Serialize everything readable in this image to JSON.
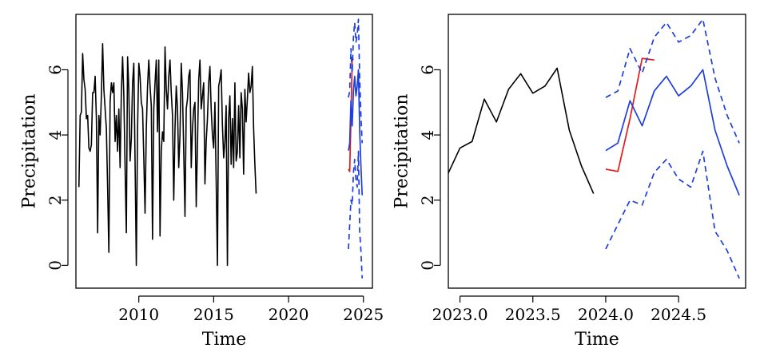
{
  "chart_data": [
    {
      "type": "line",
      "xlabel": "Time",
      "ylabel": "Precipitation",
      "xlim": [
        2005.8,
        2025.6
      ],
      "ylim": [
        -0.7,
        7.7
      ],
      "xticks": [
        2010,
        2015,
        2020,
        2025
      ],
      "xtick_labels": [
        "2010",
        "2015",
        "2020",
        "2025"
      ],
      "yticks": [
        0,
        2,
        4,
        6
      ],
      "ytick_labels": [
        "0",
        "2",
        "4",
        "6"
      ],
      "grid": false,
      "series": [
        {
          "role": "observed",
          "color": "#000000",
          "style": "solid",
          "x_start": 2006.0,
          "x_step": 0.0833333,
          "values": [
            2.4,
            4.6,
            4.7,
            6.5,
            5.7,
            5.4,
            4.5,
            4.6,
            3.6,
            3.5,
            3.7,
            5.3,
            5.3,
            5.8,
            4.5,
            1.0,
            4.6,
            4.0,
            5.2,
            6.8,
            5.4,
            4.8,
            4.2,
            2.4,
            0.4,
            5.0,
            5.6,
            5.3,
            5.6,
            3.8,
            4.6,
            3.5,
            4.8,
            3.0,
            5.3,
            6.4,
            5.2,
            3.0,
            1.0,
            6.4,
            5.4,
            3.2,
            3.9,
            5.6,
            6.2,
            3.2,
            0.0,
            4.2,
            6.2,
            5.8,
            5.0,
            4.8,
            3.3,
            1.6,
            4.2,
            5.5,
            6.3,
            5.5,
            4.9,
            0.8,
            4.8,
            5.6,
            6.3,
            4.1,
            6.3,
            0.9,
            3.5,
            4.1,
            3.8,
            6.7,
            5.4,
            4.8,
            5.8,
            6.3,
            5.3,
            4.6,
            2.0,
            4.2,
            5.5,
            4.8,
            3.0,
            4.0,
            6.2,
            5.3,
            3.5,
            1.5,
            4.8,
            5.1,
            5.8,
            6.0,
            3.0,
            4.2,
            4.8,
            5.0,
            1.8,
            3.7,
            5.7,
            6.3,
            4.8,
            5.2,
            5.6,
            2.5,
            3.8,
            4.5,
            5.6,
            6.1,
            4.8,
            4.0,
            3.6,
            5.0,
            2.6,
            0.0,
            5.5,
            5.7,
            6.0,
            4.3,
            3.3,
            3.8,
            4.9,
            0.0,
            4.5,
            5.2,
            3.1,
            4.5,
            3.0,
            5.6,
            3.2,
            3.5,
            4.9,
            3.3,
            5.3,
            4.8,
            2.8,
            5.4,
            4.4,
            5.1,
            5.9,
            5.3,
            5.5,
            6.1,
            4.2,
            3.1,
            2.2
          ]
        },
        {
          "role": "actual",
          "color": "#e41a1c",
          "style": "solid",
          "x": [
            2024.0,
            2024.0833,
            2024.1667,
            2024.25,
            2024.3333
          ],
          "values": [
            2.95,
            2.88,
            4.5,
            6.35,
            6.3
          ]
        },
        {
          "role": "forecast",
          "color": "#1f3fdb",
          "style": "solid",
          "x": [
            2024.0,
            2024.0833,
            2024.1667,
            2024.25,
            2024.3333,
            2024.4167,
            2024.5,
            2024.5833,
            2024.6667,
            2024.75,
            2024.8333,
            2024.9167
          ],
          "values": [
            3.52,
            3.75,
            5.05,
            4.28,
            5.35,
            5.8,
            5.2,
            5.5,
            6.0,
            4.15,
            3.05,
            2.15
          ]
        },
        {
          "role": "upper_bound",
          "color": "#1f3fdb",
          "style": "dashed",
          "x": [
            2024.0,
            2024.0833,
            2024.1667,
            2024.25,
            2024.3333,
            2024.4167,
            2024.5,
            2024.5833,
            2024.6667,
            2024.75,
            2024.8333,
            2024.9167
          ],
          "values": [
            5.15,
            5.35,
            6.65,
            5.9,
            7.0,
            7.45,
            6.85,
            7.05,
            7.55,
            5.75,
            4.6,
            3.75
          ]
        },
        {
          "role": "lower_bound",
          "color": "#1f3fdb",
          "style": "dashed",
          "x": [
            2024.0,
            2024.0833,
            2024.1667,
            2024.25,
            2024.3333,
            2024.4167,
            2024.5,
            2024.5833,
            2024.6667,
            2024.75,
            2024.8333,
            2024.9167
          ],
          "values": [
            0.5,
            1.25,
            2.0,
            1.85,
            2.85,
            3.25,
            2.65,
            2.4,
            3.5,
            1.05,
            0.45,
            -0.4
          ]
        }
      ]
    },
    {
      "type": "line",
      "xlabel": "Time",
      "ylabel": "Precipitation",
      "xlim": [
        2022.92,
        2024.96
      ],
      "ylim": [
        -0.7,
        7.7
      ],
      "xticks": [
        2023.0,
        2023.5,
        2024.0,
        2024.5
      ],
      "xtick_labels": [
        "2023.0",
        "2023.5",
        "2024.0",
        "2024.5"
      ],
      "yticks": [
        0,
        2,
        4,
        6
      ],
      "ytick_labels": [
        "0",
        "2",
        "4",
        "6"
      ],
      "grid": false,
      "series": [
        {
          "role": "observed",
          "color": "#000000",
          "style": "solid",
          "x": [
            2022.9167,
            2023.0,
            2023.0833,
            2023.1667,
            2023.25,
            2023.3333,
            2023.4167,
            2023.5,
            2023.5833,
            2023.6667,
            2023.75,
            2023.8333,
            2023.9167
          ],
          "values": [
            2.8,
            3.6,
            3.8,
            5.1,
            4.4,
            5.4,
            5.88,
            5.28,
            5.5,
            6.05,
            4.15,
            3.05,
            2.2
          ]
        },
        {
          "role": "actual",
          "color": "#e41a1c",
          "style": "solid",
          "x": [
            2024.0,
            2024.0833,
            2024.1667,
            2024.25,
            2024.3333
          ],
          "values": [
            2.95,
            2.88,
            4.5,
            6.35,
            6.3
          ]
        },
        {
          "role": "forecast",
          "color": "#1f3fdb",
          "style": "solid",
          "x": [
            2024.0,
            2024.0833,
            2024.1667,
            2024.25,
            2024.3333,
            2024.4167,
            2024.5,
            2024.5833,
            2024.6667,
            2024.75,
            2024.8333,
            2024.9167
          ],
          "values": [
            3.52,
            3.75,
            5.05,
            4.28,
            5.35,
            5.8,
            5.2,
            5.5,
            6.0,
            4.15,
            3.05,
            2.15
          ]
        },
        {
          "role": "upper_bound",
          "color": "#1f3fdb",
          "style": "dashed",
          "x": [
            2024.0,
            2024.0833,
            2024.1667,
            2024.25,
            2024.3333,
            2024.4167,
            2024.5,
            2024.5833,
            2024.6667,
            2024.75,
            2024.8333,
            2024.9167
          ],
          "values": [
            5.15,
            5.35,
            6.65,
            5.9,
            7.0,
            7.45,
            6.85,
            7.05,
            7.55,
            5.75,
            4.6,
            3.75
          ]
        },
        {
          "role": "lower_bound",
          "color": "#1f3fdb",
          "style": "dashed",
          "x": [
            2024.0,
            2024.0833,
            2024.1667,
            2024.25,
            2024.3333,
            2024.4167,
            2024.5,
            2024.5833,
            2024.6667,
            2024.75,
            2024.8333,
            2024.9167
          ],
          "values": [
            0.5,
            1.25,
            2.0,
            1.85,
            2.85,
            3.25,
            2.65,
            2.4,
            3.5,
            1.05,
            0.45,
            -0.4
          ]
        }
      ]
    }
  ]
}
